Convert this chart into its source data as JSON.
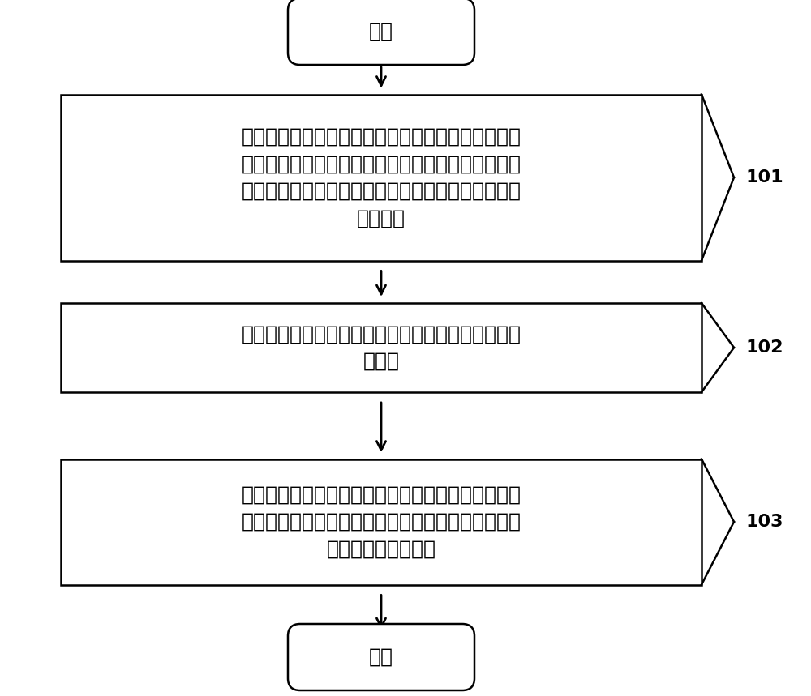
{
  "bg_color": "#ffffff",
  "start_text": "开始",
  "end_text": "结束",
  "box1_text": "测量终端根据头内影像数据建立包括载瘴动脉和载瘴\n动脉上的动脉瘴的三维模型，该三维模型包括与载瘴\n动脉相匹配的虚拟载瘴动脉以及与动脉瘴相匹配的虚\n拟动脉瘴",
  "box2_text": "测量终端基于上述三维模型确定上述虚拟动脉瘴的瘴\n颈平面",
  "box3_text": "测量终端基于上述三维模型以及与述瘴颈平面确定目\n标形态学参数，该目标形态学参数至少包括上述虚拟\n动脉瘴的形态学参数",
  "label1": "101",
  "label2": "102",
  "label3": "103",
  "font_size": 18,
  "label_font_size": 16
}
